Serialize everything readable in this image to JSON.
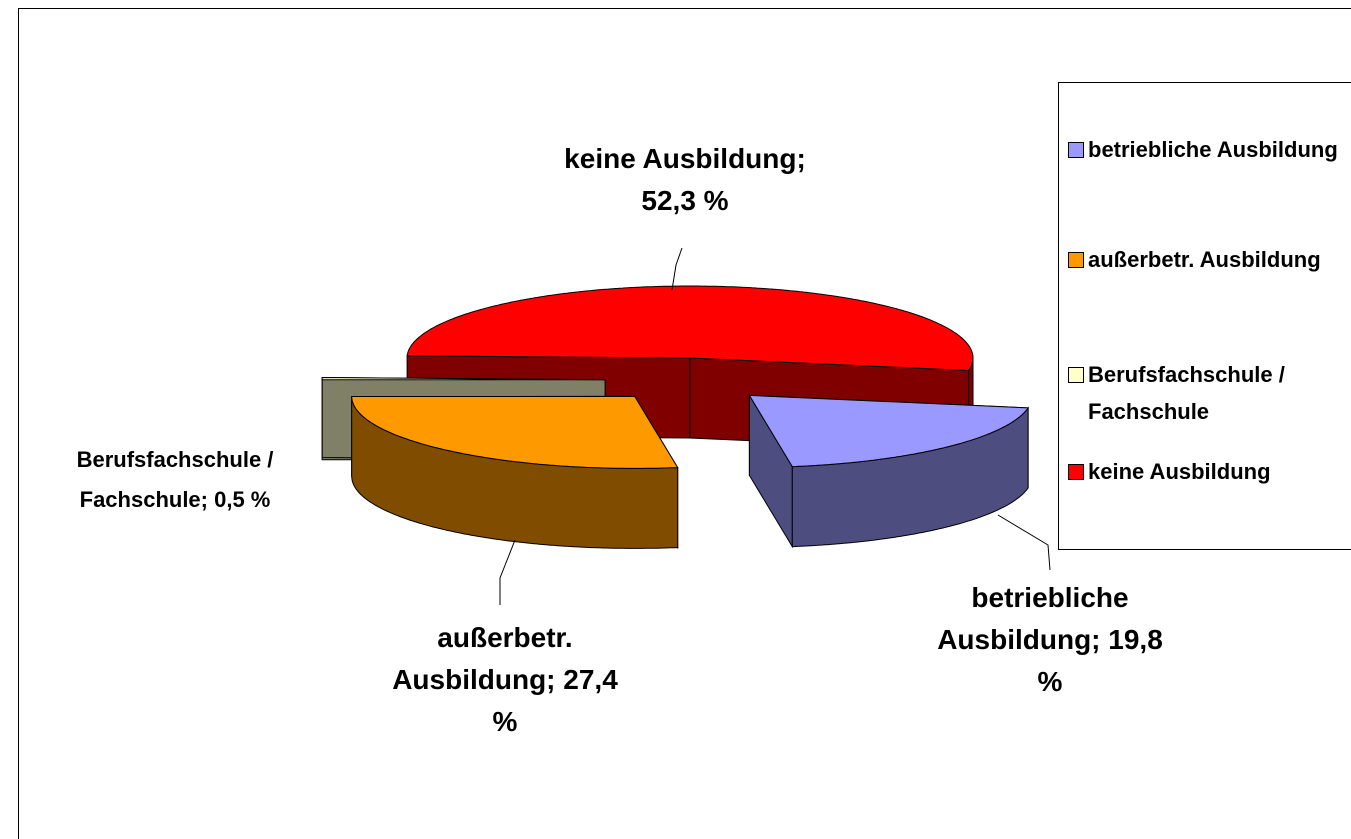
{
  "chart_data": {
    "type": "pie3d",
    "categories": [
      "betriebliche Ausbildung",
      "außerbetr. Ausbildung",
      "Berufsfachschule / Fachschule",
      "keine Ausbildung"
    ],
    "values": [
      19.8,
      27.4,
      0.5,
      52.3
    ],
    "value_labels": [
      "betriebliche Ausbildung; 19,8  %",
      "außerbetr. Ausbildung; 27,4 %",
      "Berufsfachschule / Fachschule; 0,5 %",
      "keine Ausbildung; 52,3 %"
    ],
    "colors": [
      "#9999ff",
      "#ff9900",
      "#ffffcc",
      "#ff0000"
    ],
    "legend": "right"
  }
}
